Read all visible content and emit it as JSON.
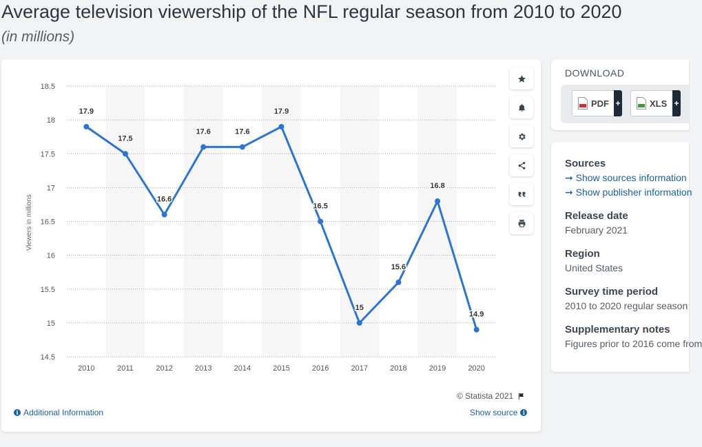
{
  "header": {
    "title": "Average television viewership of the NFL regular season from 2010 to 2020",
    "subtitle": "(in millions)"
  },
  "chart_data": {
    "type": "line",
    "title": "Average television viewership of the NFL regular season from 2010 to 2020",
    "subtitle": "(in millions)",
    "xlabel": "",
    "ylabel": "Viewers in millions",
    "categories": [
      "2010",
      "2011",
      "2012",
      "2013",
      "2014",
      "2015",
      "2016",
      "2017",
      "2018",
      "2019",
      "2020"
    ],
    "series": [
      {
        "values": [
          17.9,
          17.5,
          16.6,
          17.6,
          17.6,
          17.9,
          16.5,
          15,
          15.6,
          16.8,
          14.9
        ]
      }
    ],
    "data_labels": [
      "17.9",
      "17.5",
      "16.6",
      "17.6",
      "17.6",
      "17.9",
      "16.5",
      "15",
      "15.6",
      "16.8",
      "14.9"
    ],
    "y_ticks": [
      "14.5",
      "15",
      "15.5",
      "16",
      "16.5",
      "17",
      "17.5",
      "18",
      "18.5"
    ],
    "ylim": [
      14.5,
      18.5
    ],
    "grid": true,
    "line_color": "#2a74d8"
  },
  "toolbar": {
    "icons": [
      "star-icon",
      "bell-icon",
      "gear-icon",
      "share-icon",
      "quote-icon",
      "print-icon"
    ]
  },
  "footer": {
    "credit": "© Statista 2021",
    "additional_info": "Additional Information",
    "show_source": "Show source"
  },
  "download": {
    "title": "DOWNLOAD",
    "pdf_label": "PDF",
    "xls_label": "XLS",
    "plus": "+"
  },
  "meta": {
    "sources_heading": "Sources",
    "show_sources": "➞ Show sources information",
    "show_publisher": "➞ Show publisher information",
    "release_heading": "Release date",
    "release_value": "February 2021",
    "region_heading": "Region",
    "region_value": "United States",
    "survey_heading": "Survey time period",
    "survey_value": "2010 to 2020 regular season",
    "notes_heading": "Supplementary notes",
    "notes_value": "Figures prior to 2016 come from"
  }
}
